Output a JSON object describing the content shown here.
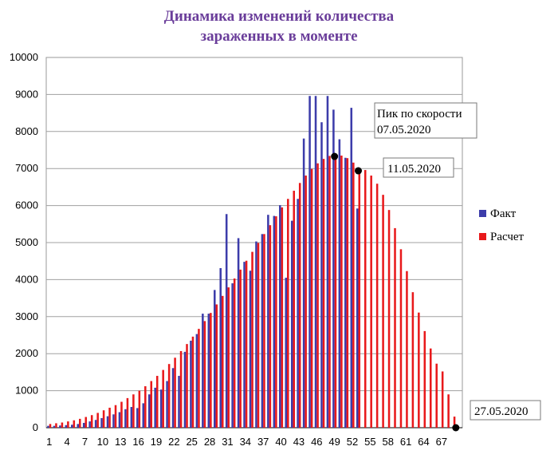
{
  "chart_data": {
    "type": "bar",
    "title_line1": "Динамика изменений количества",
    "title_line2": "зараженных в моменте",
    "xlabel": "",
    "ylabel": "",
    "ylim": [
      0,
      10000
    ],
    "yticks": [
      0,
      1000,
      2000,
      3000,
      4000,
      5000,
      6000,
      7000,
      8000,
      9000,
      10000
    ],
    "xtick_labels": [
      "1",
      "4",
      "7",
      "10",
      "13",
      "16",
      "19",
      "22",
      "25",
      "28",
      "31",
      "34",
      "37",
      "40",
      "43",
      "46",
      "49",
      "52",
      "55",
      "58",
      "61",
      "64",
      "67"
    ],
    "x_count": 70,
    "grid": "horizontal",
    "legend_position": "right",
    "series": [
      {
        "name": "Факт",
        "color": "#3c3caa",
        "values": [
          50,
          50,
          60,
          70,
          80,
          100,
          130,
          170,
          210,
          260,
          310,
          360,
          420,
          500,
          560,
          530,
          660,
          900,
          1080,
          1030,
          1260,
          1610,
          1400,
          2050,
          2350,
          2530,
          3080,
          3080,
          3720,
          4310,
          5770,
          3900,
          5120,
          4480,
          4240,
          5030,
          5230,
          5750,
          5720,
          6010,
          4050,
          5590,
          6180,
          7810,
          8960,
          8960,
          8250,
          8960,
          8590,
          7790,
          7290,
          8640,
          5920
        ]
      },
      {
        "name": "Расчет",
        "color": "#e8191b",
        "values": [
          100,
          120,
          140,
          170,
          200,
          240,
          290,
          340,
          400,
          470,
          540,
          610,
          700,
          800,
          900,
          1000,
          1120,
          1260,
          1400,
          1560,
          1720,
          1890,
          2070,
          2260,
          2460,
          2670,
          2880,
          3100,
          3330,
          3560,
          3790,
          4030,
          4270,
          4510,
          4750,
          4990,
          5230,
          5470,
          5710,
          5950,
          6180,
          6400,
          6610,
          6810,
          6990,
          7140,
          7260,
          7340,
          7370,
          7350,
          7280,
          7160,
          6990,
          6960,
          6810,
          6590,
          6290,
          5880,
          5390,
          4820,
          4230,
          3660,
          3110,
          2610,
          2140,
          1730,
          1520,
          900,
          300,
          0
        ]
      }
    ],
    "annotations": [
      {
        "text_line1": "Пик по скорости",
        "text_line2": "07.05.2020",
        "x": 49,
        "y": 7370
      },
      {
        "text": "11.05.2020",
        "x": 53,
        "y": 6960
      },
      {
        "text": "27.05.2020",
        "x": 69,
        "y": 0
      }
    ]
  }
}
